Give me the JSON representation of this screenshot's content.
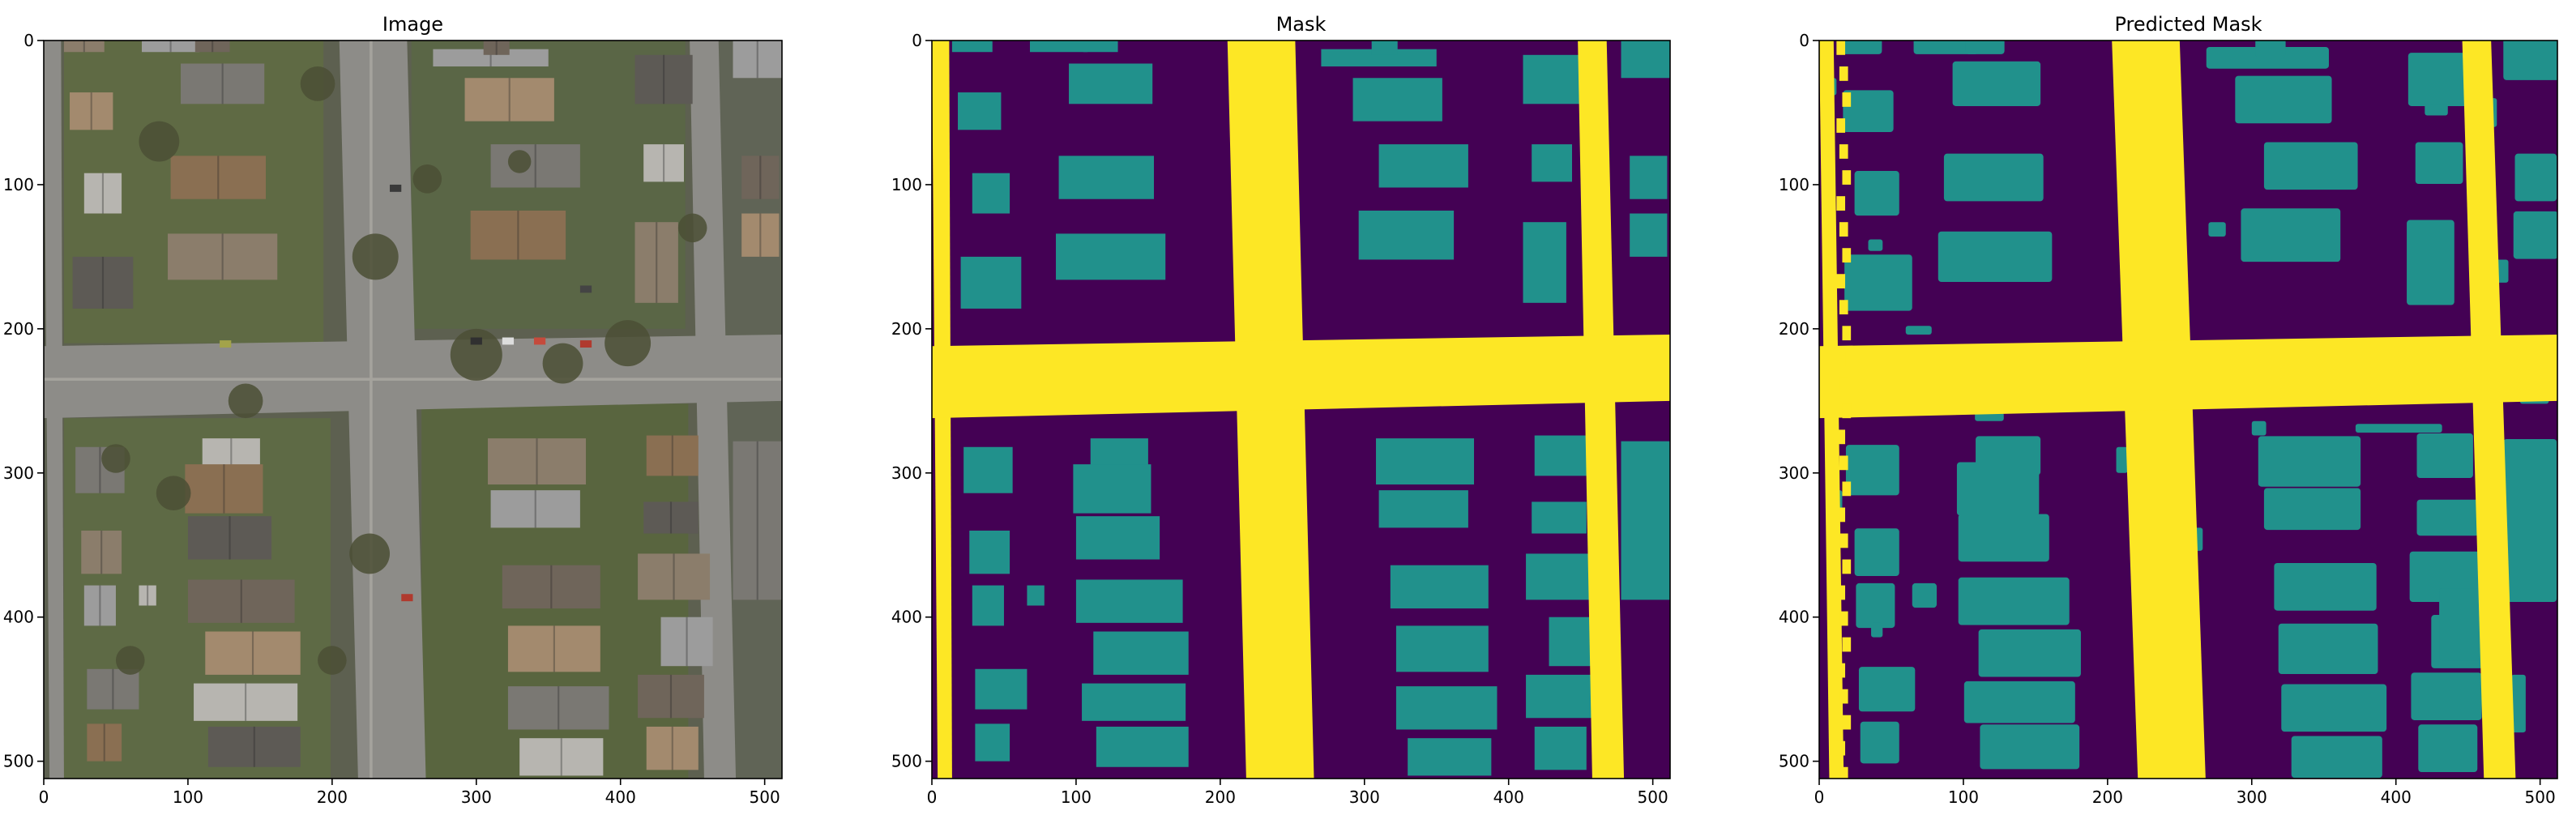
{
  "figure": {
    "panels": [
      {
        "title": "Image",
        "kind": "aerial-photo",
        "x_ticks": [
          0,
          100,
          200,
          300,
          400,
          500
        ],
        "y_ticks": [
          0,
          100,
          200,
          300,
          400,
          500
        ]
      },
      {
        "title": "Mask",
        "kind": "segmentation-mask",
        "x_ticks": [
          0,
          100,
          200,
          300,
          400,
          500
        ],
        "y_ticks": [
          0,
          100,
          200,
          300,
          400,
          500
        ]
      },
      {
        "title": "Predicted Mask",
        "kind": "segmentation-mask-predicted",
        "x_ticks": [
          0,
          100,
          200,
          300,
          400,
          500
        ],
        "y_ticks": [
          0,
          100,
          200,
          300,
          400,
          500
        ]
      }
    ],
    "axis_range": [
      0,
      512
    ],
    "colors": {
      "background_class": "#440154",
      "building_class": "#21918c",
      "road_class": "#fde725"
    }
  }
}
